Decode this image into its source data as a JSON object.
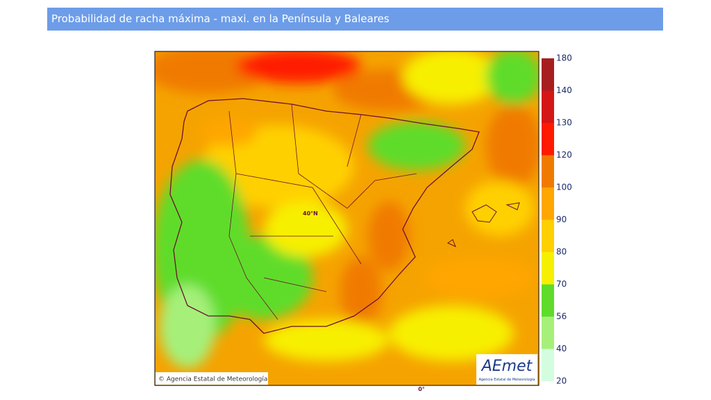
{
  "header": {
    "title": "Probabilidad de racha máxima - maxi. en la Península y Baleares"
  },
  "map": {
    "lat_label": "40°N",
    "lon_label": "0°",
    "copyright": "© Agencia Estatal de Meteorología",
    "logo": {
      "text": "AEmet",
      "subtitle": "Agencia Estatal de Meteorología"
    }
  },
  "legend": {
    "ticks": [
      180,
      140,
      130,
      120,
      100,
      90,
      80,
      70,
      56,
      40,
      20
    ],
    "colors": [
      "#a81e1e",
      "#d41616",
      "#ff1a00",
      "#f07a00",
      "#ffa600",
      "#ffd000",
      "#f7ef00",
      "#5fdc2a",
      "#a6f07a",
      "#d4fde0"
    ]
  }
}
